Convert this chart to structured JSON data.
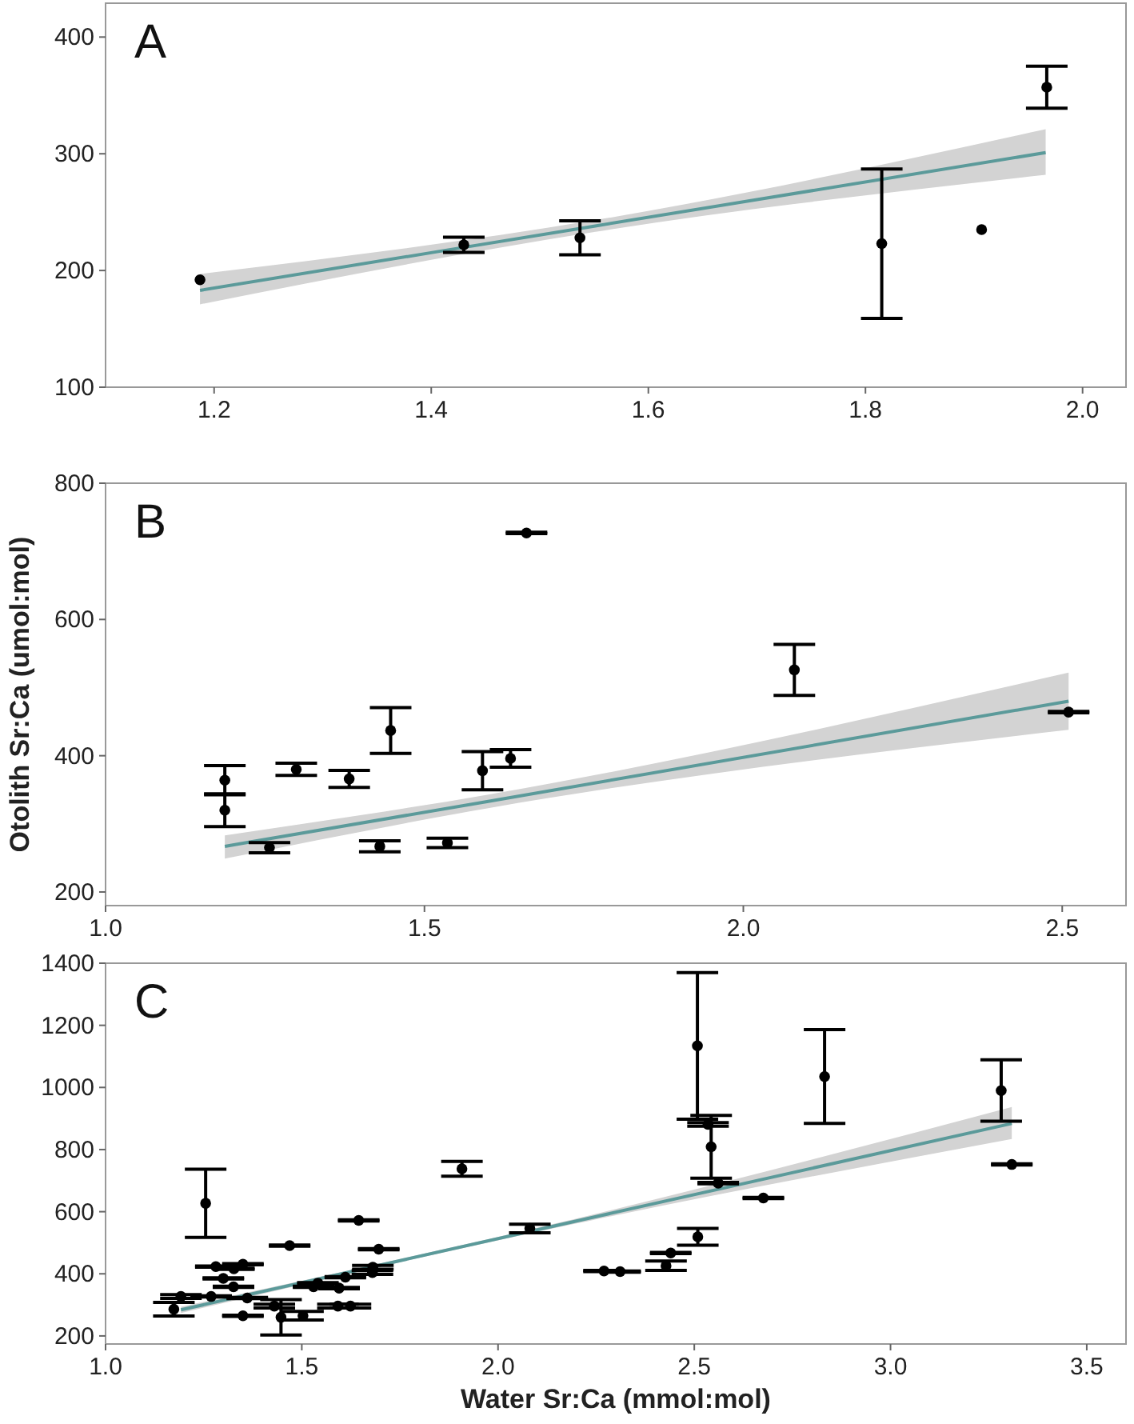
{
  "chart_data": [
    {
      "type": "scatter",
      "title": "A",
      "xlim": [
        1.1,
        2.04
      ],
      "ylim": [
        100,
        429
      ],
      "xticks": [
        {
          "value": 1.2,
          "label": "1.2"
        },
        {
          "value": 1.4,
          "label": "1.4"
        },
        {
          "value": 1.6,
          "label": "1.6"
        },
        {
          "value": 1.8,
          "label": "1.8"
        },
        {
          "value": 2.0,
          "label": "2.0"
        }
      ],
      "yticks": [
        100,
        200,
        300,
        400
      ],
      "grid": false,
      "series": [
        {
          "type": "line",
          "color": "#5b9a9a",
          "x": [
            1.187,
            1.55,
            1.966
          ],
          "values": [
            183,
            238,
            301
          ],
          "lower": [
            171,
            233,
            282
          ],
          "upper": [
            197,
            243,
            321
          ]
        },
        {
          "marker": "circle",
          "color": "#000000",
          "x": [
            1.187,
            1.43,
            1.537,
            1.815,
            1.907,
            1.967
          ],
          "values": [
            192,
            222,
            228,
            223,
            235,
            357
          ],
          "errors": [
            null,
            6.5,
            14.5,
            64,
            null,
            18
          ]
        }
      ]
    },
    {
      "type": "scatter",
      "title": "B",
      "ylabel": "Otolith Sr:Ca (umol:mol)",
      "xlim": [
        1.0,
        2.6
      ],
      "ylim": [
        180,
        800
      ],
      "xticks": [
        {
          "value": 1.0,
          "label": "1.0"
        },
        {
          "value": 1.5,
          "label": "1.5"
        },
        {
          "value": 2.0,
          "label": "2.0"
        },
        {
          "value": 2.5,
          "label": "2.5"
        }
      ],
      "yticks": [
        200,
        400,
        600,
        800
      ],
      "grid": false,
      "series": [
        {
          "type": "line",
          "color": "#5b9a9a",
          "x": [
            1.187,
            1.6,
            2.51
          ],
          "values": [
            267,
            333,
            480
          ],
          "lower": [
            249,
            323,
            438
          ],
          "upper": [
            283,
            343,
            522
          ]
        },
        {
          "marker": "circle",
          "color": "#000000",
          "x": [
            1.187,
            1.187,
            1.257,
            1.299,
            1.382,
            1.43,
            1.447,
            1.536,
            1.591,
            1.635,
            1.66,
            2.08,
            2.51
          ],
          "values": [
            364,
            320,
            265,
            380,
            366,
            267,
            437,
            272,
            378,
            396,
            727,
            526,
            464
          ],
          "errors": [
            21.5,
            24,
            7.5,
            9,
            12.5,
            8,
            33.5,
            7,
            28,
            13,
            1,
            37.5,
            1
          ]
        }
      ]
    },
    {
      "type": "scatter",
      "title": "C",
      "xlabel": "Water Sr:Ca (mmol:mol)",
      "xlim": [
        1.0,
        3.6
      ],
      "ylim": [
        174,
        1400
      ],
      "xticks": [
        {
          "value": 1.0,
          "label": "1.0"
        },
        {
          "value": 1.5,
          "label": "1.5"
        },
        {
          "value": 2.0,
          "label": "2.0"
        },
        {
          "value": 2.5,
          "label": "2.5"
        },
        {
          "value": 3.0,
          "label": "3.0"
        },
        {
          "value": 3.5,
          "label": "3.5"
        }
      ],
      "yticks": [
        200,
        400,
        600,
        800,
        1000,
        1200,
        1400
      ],
      "grid": false,
      "series": [
        {
          "type": "line",
          "color": "#5b9a9a",
          "x": [
            1.192,
            2.2,
            3.309
          ],
          "values": [
            284,
            570,
            884
          ],
          "lower": [
            274,
            562,
            834
          ],
          "upper": [
            294,
            578,
            937
          ]
        },
        {
          "marker": "circle",
          "color": "#000000",
          "x": [
            1.255,
            1.174,
            1.192,
            1.281,
            1.3,
            1.327,
            1.35,
            1.326,
            1.269,
            1.361,
            1.35,
            1.447,
            1.43,
            1.503,
            1.469,
            1.541,
            1.53,
            1.595,
            1.611,
            1.592,
            1.624,
            1.645,
            1.681,
            1.68,
            1.696,
            1.908,
            2.081,
            2.27,
            2.311,
            2.508,
            2.535,
            2.543,
            2.561,
            2.676,
            2.509,
            2.44,
            2.428,
            2.832,
            3.282,
            3.309
          ],
          "values": [
            627,
            286,
            327,
            423,
            385,
            416,
            431,
            358,
            327,
            322,
            265,
            260,
            296,
            265,
            491,
            370,
            358,
            354,
            389,
            296,
            296,
            572,
            421,
            404,
            479,
            738,
            546,
            409,
            407,
            1134,
            881,
            809,
            692,
            644,
            519,
            467,
            426,
            1035,
            990,
            752
          ],
          "errors": [
            110,
            22,
            6,
            2,
            2,
            2,
            2,
            2,
            2,
            2,
            2,
            57,
            6,
            14,
            2,
            2,
            2,
            2,
            2,
            6,
            6,
            2,
            6,
            6,
            2,
            24,
            14,
            2,
            2,
            236,
            6,
            101,
            2,
            2,
            27,
            2,
            15,
            151,
            99,
            2
          ]
        }
      ]
    }
  ]
}
